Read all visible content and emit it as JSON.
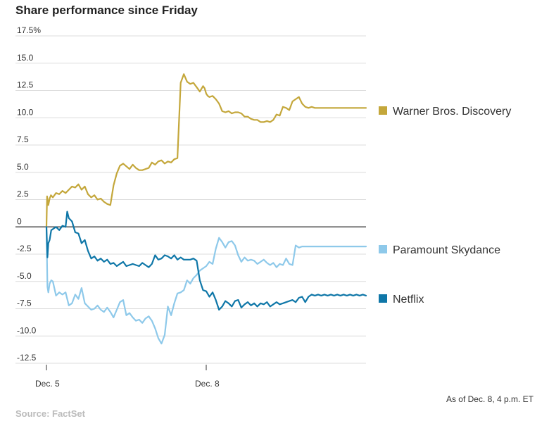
{
  "chart_data": {
    "type": "line",
    "title": "Share performance since Friday",
    "xlabel": "",
    "ylabel": "",
    "ylim": [
      -12.5,
      17.5
    ],
    "xlim": [
      0,
      1
    ],
    "grid": true,
    "legend_placement": "right",
    "y_ticks": [
      {
        "value": 17.5,
        "label": "17.5%"
      },
      {
        "value": 15.0,
        "label": "15.0"
      },
      {
        "value": 12.5,
        "label": "12.5"
      },
      {
        "value": 10.0,
        "label": "10.0"
      },
      {
        "value": 7.5,
        "label": "7.5"
      },
      {
        "value": 5.0,
        "label": "5.0"
      },
      {
        "value": 2.5,
        "label": "2.5"
      },
      {
        "value": 0,
        "label": "0"
      },
      {
        "value": -2.5,
        "label": "-2.5"
      },
      {
        "value": -5.0,
        "label": "-5.0"
      },
      {
        "value": -7.5,
        "label": "-7.5"
      },
      {
        "value": -10.0,
        "label": "-10.0"
      },
      {
        "value": -12.5,
        "label": "-12.5"
      }
    ],
    "x_ticks": [
      {
        "value": 0,
        "label": "Dec. 5"
      },
      {
        "value": 0.5,
        "label": "Dec. 8"
      }
    ],
    "series": [
      {
        "name": "Warner Bros. Discovery",
        "color": "#c4a73b",
        "x": [
          0,
          0.002,
          0.006,
          0.01,
          0.014,
          0.02,
          0.03,
          0.04,
          0.05,
          0.06,
          0.07,
          0.08,
          0.09,
          0.1,
          0.11,
          0.12,
          0.13,
          0.14,
          0.15,
          0.16,
          0.17,
          0.18,
          0.19,
          0.2,
          0.21,
          0.22,
          0.23,
          0.24,
          0.26,
          0.27,
          0.28,
          0.29,
          0.3,
          0.31,
          0.32,
          0.33,
          0.34,
          0.35,
          0.36,
          0.37,
          0.38,
          0.39,
          0.4,
          0.41,
          0.42,
          0.43,
          0.44,
          0.45,
          0.46,
          0.47,
          0.48,
          0.49,
          0.495,
          0.5,
          0.505,
          0.51,
          0.52,
          0.53,
          0.54,
          0.55,
          0.56,
          0.57,
          0.58,
          0.59,
          0.6,
          0.61,
          0.62,
          0.63,
          0.64,
          0.65,
          0.66,
          0.67,
          0.68,
          0.69,
          0.7,
          0.71,
          0.72,
          0.73,
          0.74,
          0.75,
          0.76,
          0.77,
          0.78,
          0.79,
          0.8,
          0.81,
          0.82,
          0.83,
          0.84,
          0.85,
          0.86,
          0.87,
          0.88,
          0.89,
          0.9,
          0.91,
          0.92,
          0.93,
          0.94,
          0.95,
          0.96,
          0.97,
          0.98,
          0.99,
          1.0
        ],
        "values": [
          0,
          2.8,
          2.0,
          2.6,
          2.9,
          2.7,
          3.1,
          3.0,
          3.3,
          3.1,
          3.4,
          3.7,
          3.6,
          3.9,
          3.4,
          3.7,
          3.0,
          2.7,
          2.9,
          2.5,
          2.6,
          2.3,
          2.1,
          2.0,
          3.8,
          4.9,
          5.6,
          5.8,
          5.3,
          5.7,
          5.4,
          5.2,
          5.2,
          5.3,
          5.4,
          5.9,
          5.7,
          6.0,
          6.1,
          5.8,
          6.0,
          5.9,
          6.2,
          6.3,
          13.2,
          14.0,
          13.3,
          13.1,
          13.2,
          12.8,
          12.4,
          12.9,
          12.7,
          12.2,
          12.0,
          11.9,
          12.0,
          11.7,
          11.3,
          10.6,
          10.5,
          10.6,
          10.4,
          10.5,
          10.5,
          10.4,
          10.1,
          10.1,
          9.9,
          9.8,
          9.8,
          9.6,
          9.6,
          9.7,
          9.6,
          9.8,
          10.3,
          10.2,
          11.0,
          10.9,
          10.7,
          11.5,
          11.7,
          11.9,
          11.3,
          11.0,
          10.9,
          11.0,
          10.9,
          10.9,
          10.9,
          10.9,
          10.9,
          10.9,
          10.9,
          10.9,
          10.9,
          10.9,
          10.9,
          10.9,
          10.9,
          10.9,
          10.9,
          10.9,
          10.9
        ]
      },
      {
        "name": "Paramount Skydance",
        "color": "#8ec9ea",
        "x": [
          0,
          0.003,
          0.006,
          0.01,
          0.015,
          0.02,
          0.03,
          0.04,
          0.05,
          0.06,
          0.07,
          0.08,
          0.09,
          0.1,
          0.11,
          0.12,
          0.13,
          0.14,
          0.15,
          0.16,
          0.17,
          0.18,
          0.19,
          0.2,
          0.21,
          0.22,
          0.23,
          0.24,
          0.25,
          0.26,
          0.27,
          0.28,
          0.29,
          0.3,
          0.31,
          0.32,
          0.33,
          0.34,
          0.35,
          0.36,
          0.37,
          0.38,
          0.39,
          0.4,
          0.41,
          0.42,
          0.43,
          0.44,
          0.45,
          0.46,
          0.47,
          0.48,
          0.49,
          0.5,
          0.51,
          0.52,
          0.53,
          0.54,
          0.55,
          0.56,
          0.57,
          0.58,
          0.59,
          0.6,
          0.61,
          0.62,
          0.63,
          0.64,
          0.65,
          0.66,
          0.67,
          0.68,
          0.69,
          0.7,
          0.71,
          0.72,
          0.73,
          0.74,
          0.75,
          0.76,
          0.77,
          0.78,
          0.79,
          0.8,
          0.81,
          0.82,
          0.83,
          0.84,
          0.85,
          0.86,
          0.87,
          0.88,
          0.89,
          0.9,
          0.91,
          0.92,
          0.93,
          0.94,
          0.95,
          0.96,
          0.97,
          0.98,
          0.99,
          1.0
        ],
        "values": [
          0,
          -5.5,
          -6.0,
          -5.2,
          -4.9,
          -5.0,
          -6.3,
          -6.0,
          -6.2,
          -6.0,
          -7.2,
          -7.0,
          -6.2,
          -6.6,
          -5.6,
          -7.0,
          -7.3,
          -7.6,
          -7.5,
          -7.2,
          -7.6,
          -7.8,
          -7.4,
          -7.8,
          -8.3,
          -7.6,
          -6.9,
          -6.7,
          -8.1,
          -7.9,
          -8.3,
          -8.6,
          -8.5,
          -8.8,
          -8.4,
          -8.2,
          -8.6,
          -9.3,
          -10.2,
          -10.7,
          -9.9,
          -7.3,
          -8.1,
          -7.0,
          -6.1,
          -6.0,
          -5.8,
          -4.9,
          -5.2,
          -4.7,
          -4.4,
          -4.0,
          -3.8,
          -3.6,
          -3.2,
          -3.4,
          -2.0,
          -1.0,
          -1.4,
          -1.9,
          -1.4,
          -1.3,
          -1.7,
          -2.6,
          -3.2,
          -2.8,
          -3.1,
          -3.0,
          -3.1,
          -3.4,
          -3.2,
          -3.0,
          -3.3,
          -3.5,
          -3.3,
          -3.7,
          -3.4,
          -3.5,
          -2.9,
          -3.4,
          -3.5,
          -1.7,
          -1.9,
          -1.8,
          -1.8,
          -1.8,
          -1.8,
          -1.8,
          -1.8,
          -1.8,
          -1.8,
          -1.8,
          -1.8,
          -1.8,
          -1.8,
          -1.8,
          -1.8,
          -1.8,
          -1.8,
          -1.8,
          -1.8,
          -1.8,
          -1.8,
          -1.8
        ]
      },
      {
        "name": "Netflix",
        "color": "#0f77a8",
        "x": [
          0,
          0.003,
          0.006,
          0.01,
          0.015,
          0.02,
          0.03,
          0.04,
          0.05,
          0.06,
          0.065,
          0.07,
          0.08,
          0.09,
          0.1,
          0.11,
          0.12,
          0.13,
          0.14,
          0.15,
          0.16,
          0.17,
          0.18,
          0.19,
          0.2,
          0.21,
          0.22,
          0.23,
          0.24,
          0.25,
          0.26,
          0.27,
          0.28,
          0.29,
          0.3,
          0.31,
          0.32,
          0.33,
          0.34,
          0.35,
          0.36,
          0.37,
          0.38,
          0.39,
          0.4,
          0.41,
          0.42,
          0.43,
          0.44,
          0.45,
          0.46,
          0.47,
          0.48,
          0.49,
          0.5,
          0.51,
          0.52,
          0.53,
          0.54,
          0.55,
          0.56,
          0.57,
          0.58,
          0.59,
          0.6,
          0.61,
          0.62,
          0.63,
          0.64,
          0.65,
          0.66,
          0.67,
          0.68,
          0.69,
          0.7,
          0.71,
          0.72,
          0.73,
          0.74,
          0.75,
          0.76,
          0.77,
          0.78,
          0.79,
          0.8,
          0.81,
          0.82,
          0.83,
          0.84,
          0.85,
          0.86,
          0.87,
          0.88,
          0.89,
          0.9,
          0.91,
          0.92,
          0.93,
          0.94,
          0.95,
          0.96,
          0.97,
          0.98,
          0.99,
          1.0
        ],
        "values": [
          0,
          -2.8,
          -1.5,
          -1.2,
          -0.3,
          -0.2,
          0.0,
          -0.3,
          0.1,
          0.0,
          1.4,
          0.8,
          0.5,
          -0.5,
          -0.6,
          -1.5,
          -1.2,
          -2.2,
          -2.9,
          -2.7,
          -3.1,
          -2.9,
          -3.2,
          -3.0,
          -3.4,
          -3.3,
          -3.6,
          -3.4,
          -3.2,
          -3.6,
          -3.5,
          -3.4,
          -3.5,
          -3.6,
          -3.3,
          -3.5,
          -3.7,
          -3.4,
          -2.6,
          -3.0,
          -2.9,
          -2.6,
          -2.7,
          -2.9,
          -2.6,
          -3.0,
          -2.8,
          -3.0,
          -3.0,
          -3.0,
          -2.9,
          -3.1,
          -4.9,
          -5.8,
          -5.9,
          -6.4,
          -6.0,
          -6.7,
          -7.6,
          -7.3,
          -6.8,
          -7.0,
          -7.3,
          -6.8,
          -6.7,
          -7.4,
          -7.1,
          -6.9,
          -7.2,
          -7.0,
          -7.3,
          -7.0,
          -7.1,
          -6.9,
          -7.3,
          -7.1,
          -6.9,
          -7.1,
          -7.0,
          -6.9,
          -6.8,
          -6.7,
          -6.9,
          -6.5,
          -6.4,
          -6.9,
          -6.4,
          -6.2,
          -6.3,
          -6.2,
          -6.3,
          -6.2,
          -6.3,
          -6.2,
          -6.3,
          -6.2,
          -6.3,
          -6.2,
          -6.3,
          -6.2,
          -6.3,
          -6.2,
          -6.3,
          -6.2,
          -6.3
        ]
      }
    ],
    "note": "As of Dec. 8, 4 p.m. ET",
    "source": "Source: FactSet"
  }
}
